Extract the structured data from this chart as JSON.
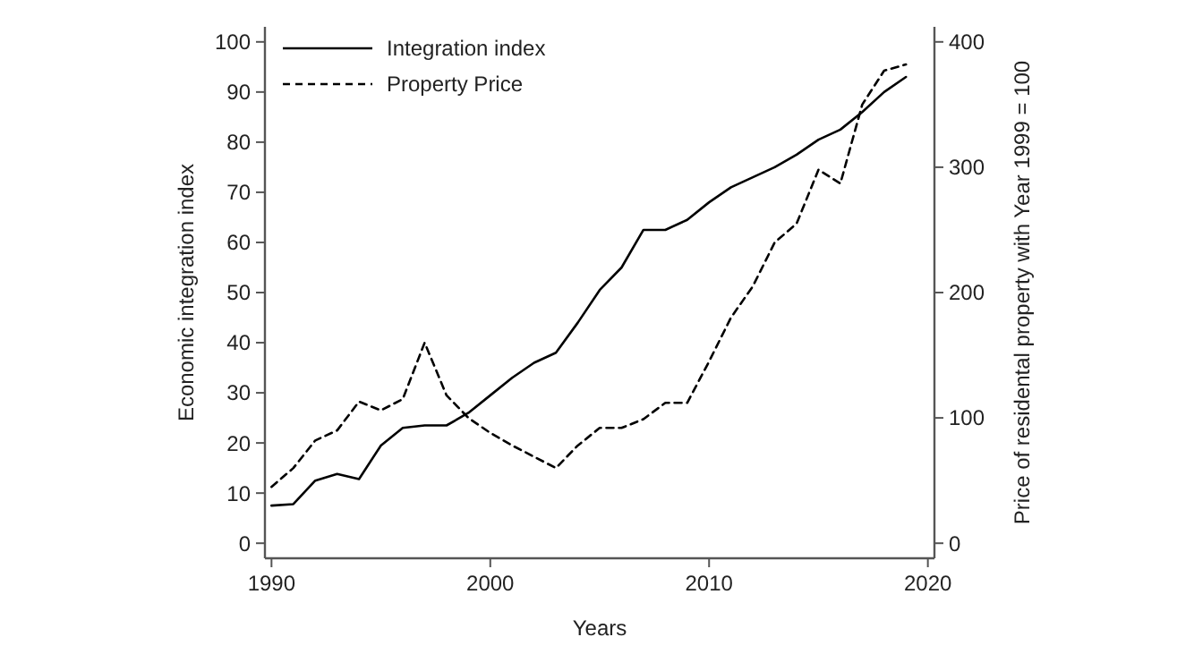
{
  "chart_data": {
    "type": "line",
    "xlabel": "Years",
    "ylabel": "Economic integration index",
    "y2label": "Price of residental property with Year 1999 = 100",
    "x": [
      1990,
      1991,
      1992,
      1993,
      1994,
      1995,
      1996,
      1997,
      1998,
      1999,
      2000,
      2001,
      2002,
      2003,
      2004,
      2005,
      2006,
      2007,
      2008,
      2009,
      2010,
      2011,
      2012,
      2013,
      2014,
      2015,
      2016,
      2017,
      2018,
      2019
    ],
    "series": [
      {
        "name": "Integration index",
        "color": "#000000",
        "line_style": "solid",
        "values": [
          7.5,
          7.8,
          12.5,
          13.8,
          12.8,
          19.5,
          23,
          23.5,
          23.5,
          26,
          29.5,
          33,
          36,
          38,
          44,
          50.5,
          55,
          62.5,
          62.5,
          64.5,
          68,
          71,
          73,
          75,
          77.5,
          80.5,
          82.5,
          86,
          90,
          93
        ]
      },
      {
        "name": "Property Price",
        "color": "#000000",
        "line_style": "dashed",
        "axis": "y2",
        "values": [
          45,
          60,
          82,
          90,
          113,
          106,
          115,
          160,
          118,
          100,
          88,
          78,
          69,
          60,
          78,
          92,
          92,
          99,
          112,
          112,
          145,
          180,
          205,
          240,
          255,
          298,
          287,
          350,
          377,
          382
        ]
      }
    ],
    "xlim": [
      1989.7,
      2020.3
    ],
    "xticks": [
      1990,
      2000,
      2010,
      2020
    ],
    "ylim": [
      -3,
      103
    ],
    "yticks": [
      0,
      10,
      20,
      30,
      40,
      50,
      60,
      70,
      80,
      90,
      100
    ],
    "y2lim": [
      -12,
      412
    ],
    "y2ticks": [
      0,
      100,
      200,
      300,
      400
    ],
    "grid": false,
    "legend": "top left",
    "marker": "none"
  }
}
